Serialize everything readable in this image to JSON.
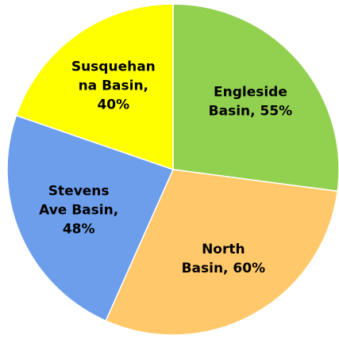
{
  "chart_data": {
    "type": "pie",
    "categories": [
      "Engleside Basin",
      "North Basin",
      "Stevens Ave Basin",
      "Susquehanna Basin"
    ],
    "values": [
      55,
      60,
      48,
      40
    ],
    "value_labels": [
      [
        "Engleside",
        "Basin, 55%"
      ],
      [
        "North",
        "Basin, 60%"
      ],
      [
        "Stevens",
        "Ave Basin,",
        "48%"
      ],
      [
        "Susquehan",
        "na Basin,",
        "40%"
      ]
    ],
    "colors": [
      "#92d050",
      "#ffc96b",
      "#6d9eeb",
      "#ffff00"
    ]
  }
}
